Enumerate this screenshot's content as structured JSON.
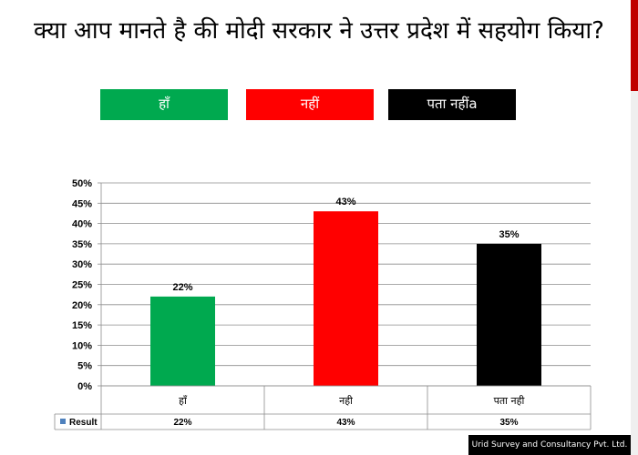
{
  "question": "क्या आप मानते है की मोदी सरकार ने उत्तर प्रदेश में सहयोग किया?",
  "options": [
    {
      "label": "हाँ",
      "color": "#00a94f"
    },
    {
      "label": "नहीं",
      "color": "#ff0000"
    },
    {
      "label": "पता नहींa",
      "color": "#000000"
    }
  ],
  "chart_data": {
    "type": "bar",
    "categories": [
      "हॉं",
      "नही",
      "पता नही"
    ],
    "series": [
      {
        "name": "Result",
        "values": [
          22,
          43,
          35
        ],
        "value_labels": [
          "22%",
          "43%",
          "35%"
        ]
      }
    ],
    "bar_colors": [
      "#00a94f",
      "#ff0000",
      "#000000"
    ],
    "ylim": [
      0,
      50
    ],
    "yticks": [
      0,
      5,
      10,
      15,
      20,
      25,
      30,
      35,
      40,
      45,
      50
    ],
    "ytick_labels": [
      "0%",
      "5%",
      "10%",
      "15%",
      "20%",
      "25%",
      "30%",
      "35%",
      "40%",
      "45%",
      "50%"
    ],
    "grid": true,
    "data_table": true,
    "legend_swatch_color": "#4f81bd"
  },
  "footer": "Urid Survey and Consultancy Pvt. Ltd."
}
